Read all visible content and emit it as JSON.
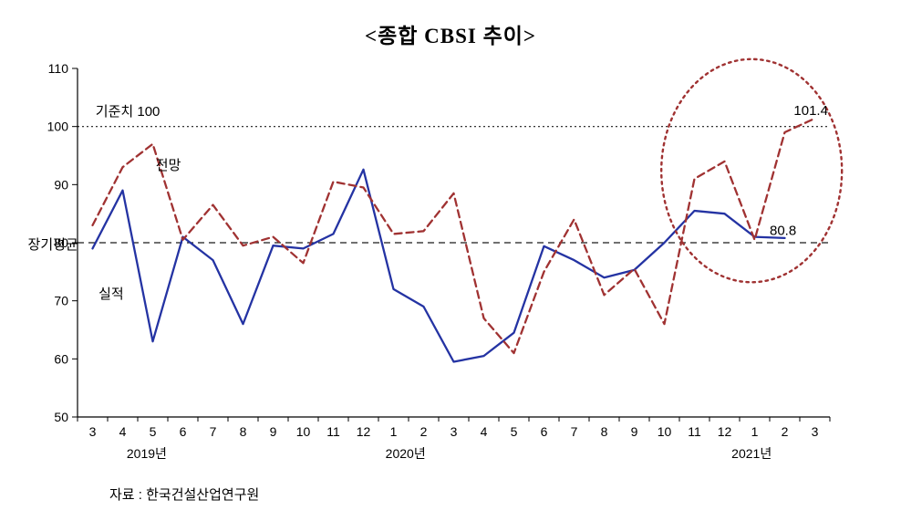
{
  "chart_data": {
    "type": "line",
    "title": "<종합 CBSI 추이>",
    "source": "자료 : 한국건설산업연구원",
    "ylim": [
      50,
      110
    ],
    "yticks": [
      50,
      60,
      70,
      80,
      90,
      100,
      110
    ],
    "grid": false,
    "legend": "inline-text-labels",
    "categories": [
      "3",
      "4",
      "5",
      "6",
      "7",
      "8",
      "9",
      "10",
      "11",
      "12",
      "1",
      "2",
      "3",
      "4",
      "5",
      "6",
      "7",
      "8",
      "9",
      "10",
      "11",
      "12",
      "1",
      "2",
      "3"
    ],
    "year_labels": [
      {
        "label": "2019년",
        "x_index": 1.8
      },
      {
        "label": "2020년",
        "x_index": 10.4
      },
      {
        "label": "2021년",
        "x_index": 21.9
      }
    ],
    "series": [
      {
        "key": "actual",
        "name": "실적",
        "color": "#2433a3",
        "style": "solid",
        "values": [
          79,
          89,
          63,
          81,
          77,
          66,
          79.5,
          79,
          81.5,
          92.6,
          72,
          69,
          59.5,
          60.5,
          64.5,
          79.4,
          77,
          74,
          75.3,
          80,
          85.5,
          85,
          81,
          80.8,
          null
        ]
      },
      {
        "key": "forecast",
        "name": "전망",
        "color": "#a03232",
        "style": "dashed",
        "values": [
          83,
          93,
          97,
          80.5,
          86.5,
          79.5,
          81,
          76.5,
          90.5,
          89.5,
          81.5,
          82,
          88.5,
          67,
          61,
          75,
          84,
          71,
          75.5,
          66,
          91,
          94,
          80.5,
          99,
          101.4
        ]
      }
    ],
    "ref_lines": [
      {
        "key": "baseline-100",
        "label": "기준치 100",
        "value": 100,
        "style": "dotted",
        "color": "#1a1a1a"
      },
      {
        "key": "longterm-avg",
        "label": "장기평균",
        "value": 80,
        "style": "dashed",
        "color": "#1a1a1a"
      }
    ],
    "annotations": [
      {
        "key": "baseline-100-label",
        "text": "기준치 100",
        "x_index": 0.1,
        "value": 101.8
      },
      {
        "key": "forecast-series-label",
        "text": "전망",
        "x_index": 2.1,
        "value": 92.6
      },
      {
        "key": "actual-series-label",
        "text": "실적",
        "x_index": 0.2,
        "value": 70.4
      },
      {
        "key": "actual-last-value",
        "text": "80.8",
        "x_index": 22.5,
        "value": 81.3
      },
      {
        "key": "forecast-last-value",
        "text": "101.4",
        "x_index": 23.3,
        "value": 102
      },
      {
        "key": "longterm-avg-label",
        "text": "장기평균",
        "x_index": -2.15,
        "value": 78.9
      }
    ],
    "highlight_ellipse": {
      "x_index": 21.9,
      "value": 92.4,
      "rx_months": 3.0,
      "ry_units": 19.2,
      "color": "#a03232",
      "style": "dotted"
    }
  }
}
